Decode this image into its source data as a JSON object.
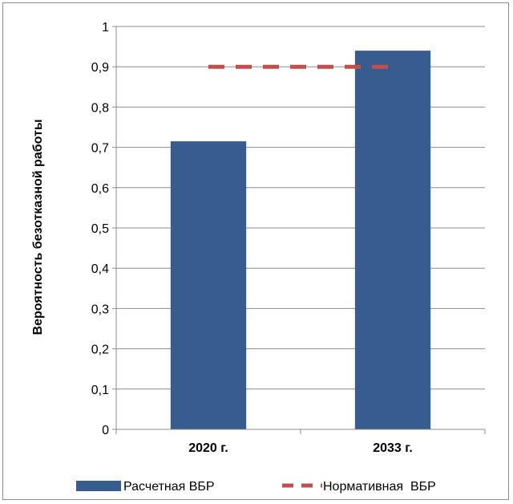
{
  "chart_data": {
    "type": "bar",
    "categories": [
      "2020 г.",
      "2033 г."
    ],
    "series": [
      {
        "name": "Расчетная ВБР",
        "type": "bar",
        "values": [
          0.715,
          0.94
        ],
        "color": "#375d8f"
      },
      {
        "name": "Нормативная  ВБР",
        "type": "line",
        "style": "dashed",
        "values": [
          0.9,
          0.9
        ],
        "color": "#c0504d"
      }
    ],
    "ylabel": "Вероятность безотказной работы",
    "xlabel": "",
    "ylim": [
      0,
      1
    ],
    "yticks": [
      "0",
      "0,1",
      "0,2",
      "0,3",
      "0,4",
      "0,5",
      "0,6",
      "0,7",
      "0,8",
      "0,9",
      "1"
    ],
    "grid": true,
    "legend": "bottom"
  }
}
